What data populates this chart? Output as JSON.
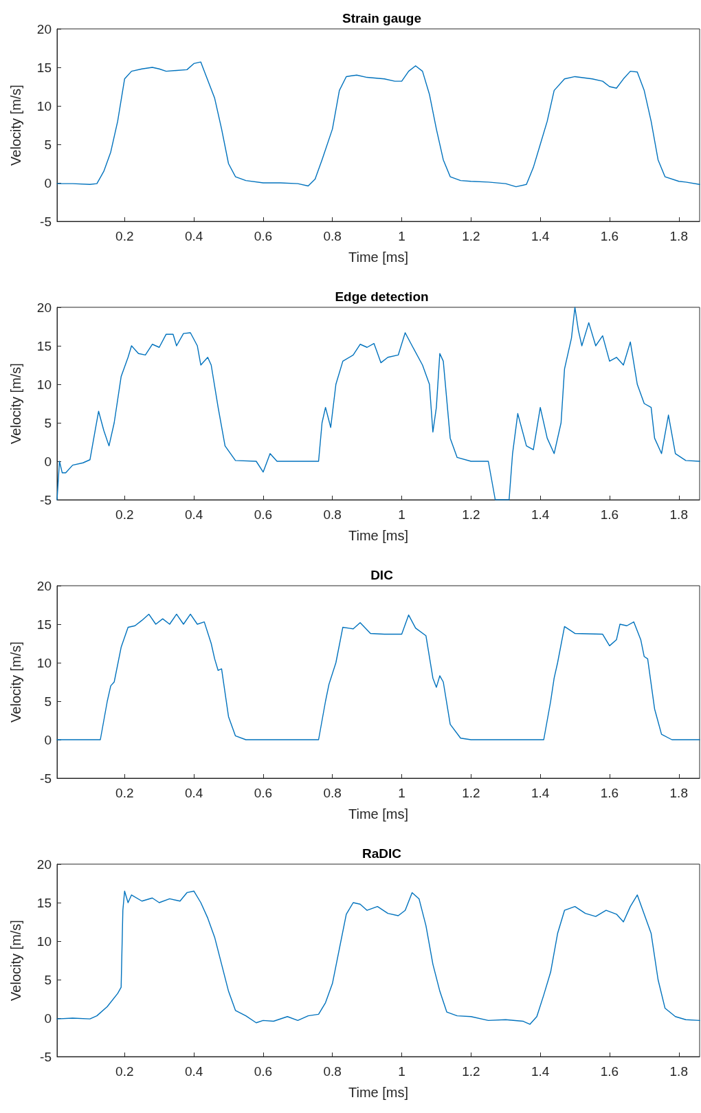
{
  "chart_data": [
    {
      "type": "line",
      "title": "Strain gauge",
      "xlabel": "Time [ms]",
      "ylabel": "Velocity [m/s]",
      "xlim": [
        0.005,
        1.86
      ],
      "ylim": [
        -5,
        20
      ],
      "xticks": [
        0.2,
        0.4,
        0.6,
        0.8,
        1,
        1.2,
        1.4,
        1.6,
        1.8
      ],
      "yticks": [
        -5,
        0,
        5,
        10,
        15,
        20
      ],
      "marker": "none",
      "line_style": "solid",
      "series": [
        {
          "color": "#0072bd",
          "x": [
            0.005,
            0.05,
            0.1,
            0.12,
            0.14,
            0.16,
            0.18,
            0.2,
            0.22,
            0.25,
            0.28,
            0.3,
            0.32,
            0.35,
            0.38,
            0.4,
            0.42,
            0.43,
            0.46,
            0.48,
            0.5,
            0.52,
            0.55,
            0.6,
            0.65,
            0.7,
            0.73,
            0.75,
            0.77,
            0.8,
            0.82,
            0.84,
            0.87,
            0.9,
            0.95,
            0.98,
            1.0,
            1.02,
            1.04,
            1.06,
            1.08,
            1.1,
            1.12,
            1.14,
            1.17,
            1.2,
            1.25,
            1.3,
            1.33,
            1.36,
            1.38,
            1.4,
            1.42,
            1.44,
            1.47,
            1.5,
            1.55,
            1.58,
            1.6,
            1.62,
            1.64,
            1.66,
            1.68,
            1.7,
            1.72,
            1.74,
            1.76,
            1.8,
            1.82,
            1.86
          ],
          "values": [
            -0.1,
            -0.1,
            -0.2,
            -0.1,
            1.5,
            4,
            8,
            13.5,
            14.5,
            14.8,
            15,
            14.8,
            14.5,
            14.6,
            14.7,
            15.5,
            15.7,
            14.5,
            11,
            7,
            2.5,
            0.8,
            0.3,
            0,
            0,
            -0.1,
            -0.4,
            0.5,
            3,
            7,
            12,
            13.8,
            14,
            13.7,
            13.5,
            13.2,
            13.2,
            14.5,
            15.2,
            14.5,
            11.5,
            7,
            3,
            0.8,
            0.3,
            0.2,
            0.1,
            -0.1,
            -0.5,
            -0.2,
            2,
            5,
            8,
            12,
            13.5,
            13.8,
            13.5,
            13.2,
            12.5,
            12.3,
            13.5,
            14.5,
            14.4,
            12,
            8,
            3,
            0.8,
            0.2,
            0.1,
            -0.2
          ]
        }
      ]
    },
    {
      "type": "line",
      "title": "Edge detection",
      "xlabel": "Time [ms]",
      "ylabel": "Velocity [m/s]",
      "xlim": [
        0.005,
        1.86
      ],
      "ylim": [
        -5,
        20
      ],
      "xticks": [
        0.2,
        0.4,
        0.6,
        0.8,
        1,
        1.2,
        1.4,
        1.6,
        1.8
      ],
      "yticks": [
        -5,
        0,
        5,
        10,
        15,
        20
      ],
      "marker": "none",
      "line_style": "solid",
      "series": [
        {
          "color": "#0072bd",
          "x": [
            0.005,
            0.012,
            0.02,
            0.03,
            0.05,
            0.08,
            0.1,
            0.115,
            0.125,
            0.14,
            0.155,
            0.17,
            0.19,
            0.21,
            0.22,
            0.24,
            0.26,
            0.28,
            0.3,
            0.32,
            0.34,
            0.35,
            0.37,
            0.39,
            0.41,
            0.42,
            0.44,
            0.45,
            0.47,
            0.49,
            0.52,
            0.58,
            0.6,
            0.62,
            0.64,
            0.7,
            0.76,
            0.77,
            0.78,
            0.795,
            0.81,
            0.83,
            0.86,
            0.88,
            0.9,
            0.92,
            0.94,
            0.96,
            0.99,
            1.01,
            1.03,
            1.06,
            1.08,
            1.09,
            1.1,
            1.11,
            1.12,
            1.14,
            1.16,
            1.2,
            1.25,
            1.27,
            1.31,
            1.32,
            1.335,
            1.36,
            1.38,
            1.4,
            1.42,
            1.44,
            1.46,
            1.47,
            1.49,
            1.5,
            1.51,
            1.52,
            1.54,
            1.56,
            1.58,
            1.6,
            1.62,
            1.64,
            1.66,
            1.68,
            1.7,
            1.72,
            1.73,
            1.75,
            1.77,
            1.79,
            1.82,
            1.86
          ],
          "values": [
            -5,
            0,
            -1.5,
            -1.5,
            -0.5,
            -0.2,
            0.2,
            4,
            6.5,
            4,
            2,
            5,
            11,
            13.5,
            15,
            14,
            13.8,
            15.2,
            14.8,
            16.5,
            16.5,
            15,
            16.6,
            16.7,
            15,
            12.5,
            13.5,
            12.5,
            7,
            2,
            0.1,
            0,
            -1.4,
            1,
            0,
            0,
            0,
            5,
            7,
            4.4,
            10,
            13,
            13.8,
            15.2,
            14.8,
            15.3,
            12.8,
            13.5,
            13.8,
            16.7,
            15,
            12.5,
            10,
            3.8,
            7,
            14,
            13,
            3,
            0.5,
            0,
            0,
            -5,
            -5,
            1,
            6.2,
            2,
            1.5,
            7,
            3,
            1,
            5,
            12,
            16,
            20,
            17,
            15,
            18,
            15,
            16.3,
            13,
            13.5,
            12.5,
            15.5,
            10,
            7.5,
            7,
            3,
            1,
            6,
            1,
            0.1,
            0
          ]
        }
      ]
    },
    {
      "type": "line",
      "title": "DIC",
      "xlabel": "Time [ms]",
      "ylabel": "Velocity [m/s]",
      "xlim": [
        0.005,
        1.86
      ],
      "ylim": [
        -5,
        20
      ],
      "xticks": [
        0.2,
        0.4,
        0.6,
        0.8,
        1,
        1.2,
        1.4,
        1.6,
        1.8
      ],
      "yticks": [
        -5,
        0,
        5,
        10,
        15,
        20
      ],
      "marker": "none",
      "line_style": "solid",
      "series": [
        {
          "color": "#0072bd",
          "x": [
            0.005,
            0.13,
            0.15,
            0.16,
            0.17,
            0.19,
            0.21,
            0.23,
            0.25,
            0.27,
            0.29,
            0.31,
            0.33,
            0.35,
            0.37,
            0.39,
            0.41,
            0.43,
            0.45,
            0.46,
            0.47,
            0.48,
            0.5,
            0.52,
            0.55,
            0.76,
            0.78,
            0.79,
            0.81,
            0.83,
            0.86,
            0.88,
            0.91,
            0.95,
            1.0,
            1.02,
            1.04,
            1.07,
            1.09,
            1.1,
            1.11,
            1.12,
            1.14,
            1.17,
            1.2,
            1.41,
            1.43,
            1.44,
            1.45,
            1.47,
            1.5,
            1.58,
            1.6,
            1.62,
            1.63,
            1.65,
            1.67,
            1.69,
            1.7,
            1.71,
            1.73,
            1.75,
            1.78,
            1.86
          ],
          "values": [
            0,
            0,
            5,
            7,
            7.5,
            12,
            14.6,
            14.8,
            15.5,
            16.3,
            15,
            15.7,
            15,
            16.3,
            15,
            16.3,
            15,
            15.3,
            12.5,
            10.5,
            9,
            9.2,
            3,
            0.5,
            0,
            0,
            5,
            7.2,
            10,
            14.6,
            14.4,
            15.2,
            13.8,
            13.7,
            13.7,
            16.2,
            14.5,
            13.5,
            8,
            6.8,
            8.3,
            7.5,
            2,
            0.2,
            0,
            0,
            5,
            8,
            10,
            14.7,
            13.8,
            13.7,
            12.2,
            13,
            15,
            14.8,
            15.3,
            13,
            10.8,
            10.5,
            4,
            0.7,
            0,
            0
          ]
        }
      ]
    },
    {
      "type": "line",
      "title": "RaDIC",
      "xlabel": "Time [ms]",
      "ylabel": "Velocity [m/s]",
      "xlim": [
        0.005,
        1.86
      ],
      "ylim": [
        -5,
        20
      ],
      "xticks": [
        0.2,
        0.4,
        0.6,
        0.8,
        1,
        1.2,
        1.4,
        1.6,
        1.8
      ],
      "yticks": [
        -5,
        0,
        5,
        10,
        15,
        20
      ],
      "marker": "none",
      "line_style": "solid",
      "series": [
        {
          "color": "#0072bd",
          "x": [
            0.005,
            0.05,
            0.1,
            0.12,
            0.15,
            0.18,
            0.19,
            0.195,
            0.2,
            0.21,
            0.22,
            0.25,
            0.28,
            0.3,
            0.33,
            0.36,
            0.38,
            0.4,
            0.42,
            0.44,
            0.46,
            0.48,
            0.5,
            0.52,
            0.55,
            0.58,
            0.6,
            0.63,
            0.67,
            0.7,
            0.73,
            0.76,
            0.78,
            0.8,
            0.82,
            0.84,
            0.86,
            0.88,
            0.9,
            0.93,
            0.96,
            0.99,
            1.01,
            1.03,
            1.05,
            1.07,
            1.09,
            1.11,
            1.13,
            1.16,
            1.2,
            1.25,
            1.3,
            1.35,
            1.37,
            1.39,
            1.41,
            1.43,
            1.45,
            1.47,
            1.5,
            1.53,
            1.56,
            1.59,
            1.62,
            1.64,
            1.66,
            1.68,
            1.7,
            1.72,
            1.74,
            1.76,
            1.79,
            1.82,
            1.86
          ],
          "values": [
            -0.1,
            0,
            -0.1,
            0.3,
            1.5,
            3.2,
            4,
            14,
            16.5,
            15,
            16,
            15.2,
            15.6,
            15,
            15.5,
            15.2,
            16.3,
            16.5,
            15,
            13,
            10.5,
            7,
            3.5,
            1,
            0.3,
            -0.6,
            -0.3,
            -0.4,
            0.2,
            -0.3,
            0.3,
            0.5,
            2,
            4.5,
            9,
            13.5,
            15,
            14.8,
            14,
            14.5,
            13.6,
            13.3,
            14,
            16.3,
            15.5,
            12,
            7,
            3.5,
            0.8,
            0.3,
            0.2,
            -0.3,
            -0.2,
            -0.4,
            -0.8,
            0.2,
            3,
            6,
            11,
            14,
            14.5,
            13.6,
            13.2,
            14,
            13.5,
            12.5,
            14.5,
            16,
            13.5,
            11,
            5,
            1.3,
            0.2,
            -0.2,
            -0.3
          ]
        }
      ]
    }
  ]
}
